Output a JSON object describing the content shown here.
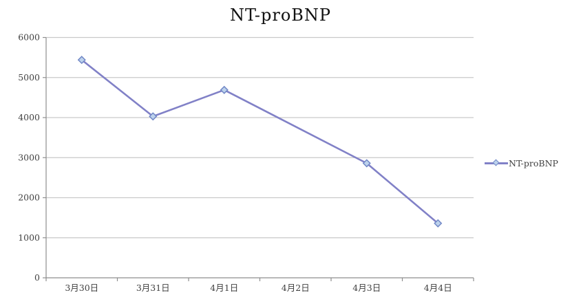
{
  "title": "NT-proBNP",
  "legend": {
    "label": "NT-proBNP"
  },
  "chart_data": {
    "type": "line",
    "title": "NT-proBNP",
    "categories": [
      "3月30日",
      "3月31日",
      "4月1日",
      "4月2日",
      "4月3日",
      "4月4日"
    ],
    "series": [
      {
        "name": "NT-proBNP",
        "values": [
          5440,
          4030,
          4690,
          null,
          2860,
          1360
        ]
      }
    ],
    "ylim": [
      0,
      6000
    ],
    "yticks": [
      0,
      1000,
      2000,
      3000,
      4000,
      5000,
      6000
    ],
    "grid": true,
    "legend_position": "right",
    "colors": {
      "line": "#8181c7",
      "marker_fill": "#bdd2ec",
      "marker_stroke": "#7087c6",
      "gridline": "#c9c9c9",
      "axis": "#8e8e8e",
      "text": "#3f3f3f",
      "background": "#ffffff"
    }
  }
}
